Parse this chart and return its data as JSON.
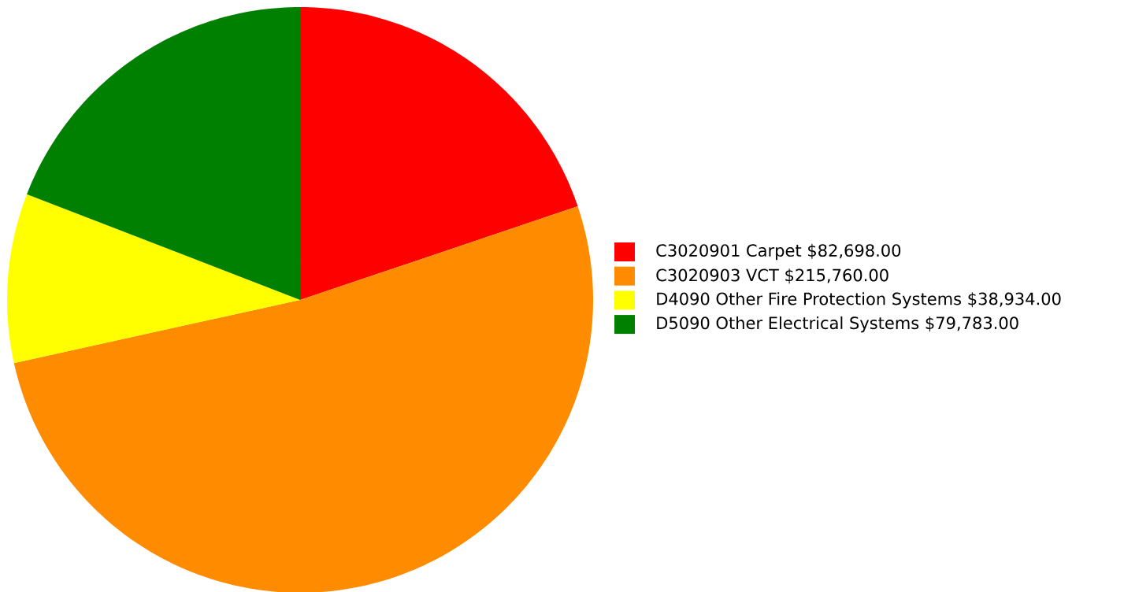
{
  "chart_data": {
    "type": "pie",
    "categories": [
      "C3020901 Carpet $82,698.00",
      "C3020903 VCT $215,760.00",
      "D4090 Other Fire Protection Systems $38,934.00",
      "D5090 Other Electrical Systems $79,783.00"
    ],
    "values": [
      82698,
      215760,
      38934,
      79783
    ],
    "colors": [
      "#ff0000",
      "#ff8c00",
      "#ffff00",
      "#008000"
    ],
    "legend": "right"
  }
}
